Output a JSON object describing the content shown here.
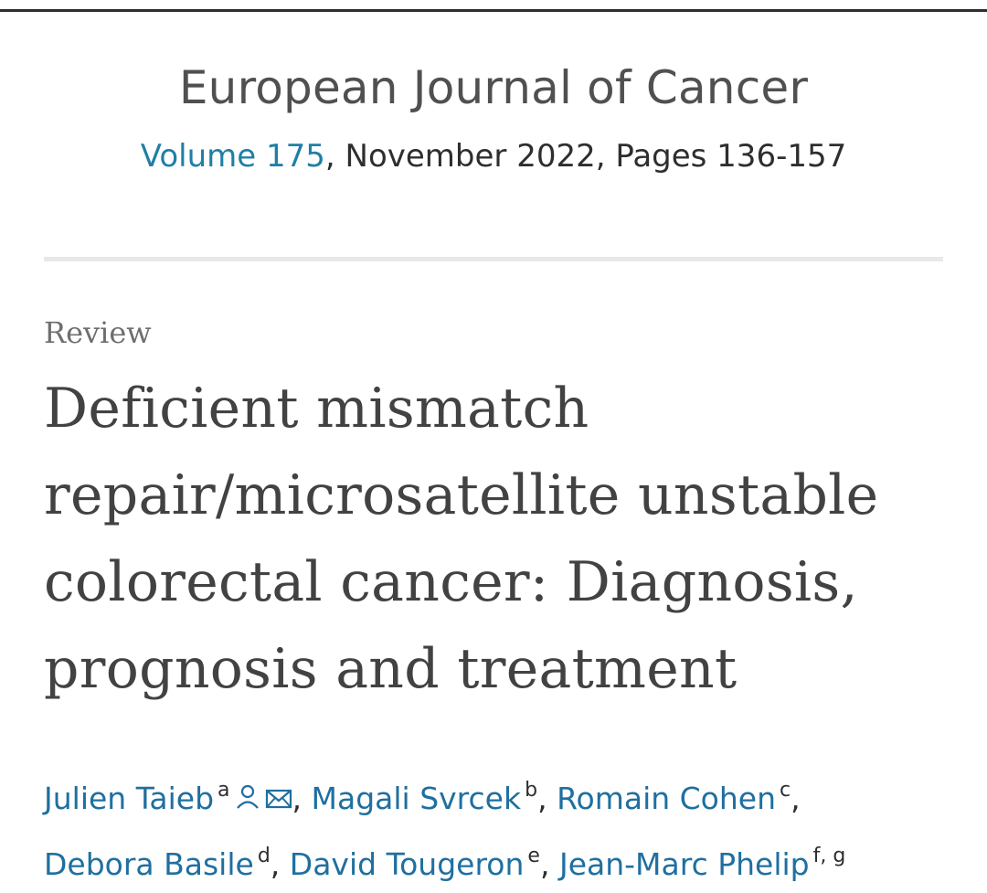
{
  "journal": {
    "title": "European Journal of Cancer",
    "volume_link": "Volume 175",
    "issue_rest": ", November 2022, Pages 136-157"
  },
  "article": {
    "type": "Review",
    "title": "Deficient mismatch repair/microsatellite unstable colorectal cancer: Diagnosis, prognosis and treatment"
  },
  "authors": [
    {
      "name": "Julien Taieb",
      "aff": "a"
    },
    {
      "name": "Magali Svrcek",
      "aff": "b"
    },
    {
      "name": "Romain Cohen",
      "aff": "c"
    },
    {
      "name": "Debora Basile",
      "aff": "d"
    },
    {
      "name": "David Tougeron",
      "aff": "e"
    },
    {
      "name": "Jean-Marc Phelip",
      "aff": "f, g"
    }
  ],
  "icons": {
    "person": "person-icon",
    "email": "envelope-icon"
  },
  "colors": {
    "link": "#1f7fa6",
    "text": "#2e2e2e",
    "muted": "#6e6e6e"
  }
}
